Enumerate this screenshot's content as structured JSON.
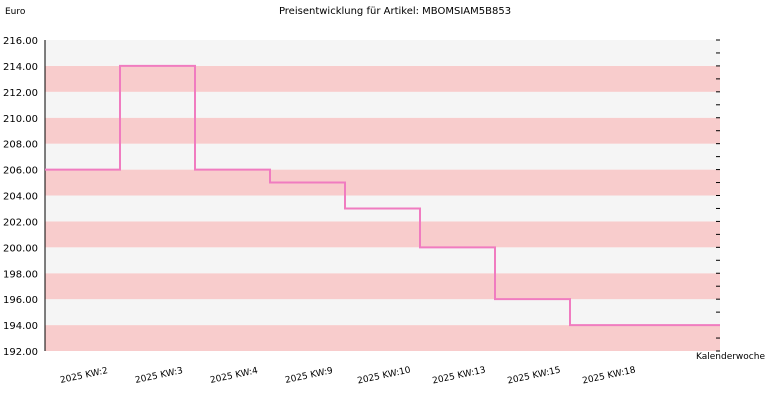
{
  "chart_data": {
    "type": "line",
    "title": "Preisentwicklung für Artikel: MBOMSIAM5B853",
    "ylabel": "Euro",
    "xlabel": "Kalenderwoche",
    "categories": [
      "2025 KW:2",
      "2025 KW:3",
      "2025 KW:4",
      "2025 KW:9",
      "2025 KW:10",
      "2025 KW:13",
      "2025 KW:15",
      "2025 KW:18"
    ],
    "series": [
      {
        "values": [
          206.0,
          214.0,
          206.0,
          205.0,
          203.0,
          200.0,
          196.0,
          194.0
        ]
      }
    ],
    "step_style": "step-after",
    "ylim": [
      192.0,
      216.0
    ],
    "yticks": [
      "192.00",
      "194.00",
      "196.00",
      "198.00",
      "200.00",
      "202.00",
      "204.00",
      "206.00",
      "208.00",
      "210.00",
      "212.00",
      "214.00",
      "216.00"
    ],
    "grid": true,
    "colors": {
      "line": "#f07cc0",
      "band_dark": "#f8cccc",
      "band_light": "#f5f5f5",
      "axis": "#000000"
    }
  }
}
